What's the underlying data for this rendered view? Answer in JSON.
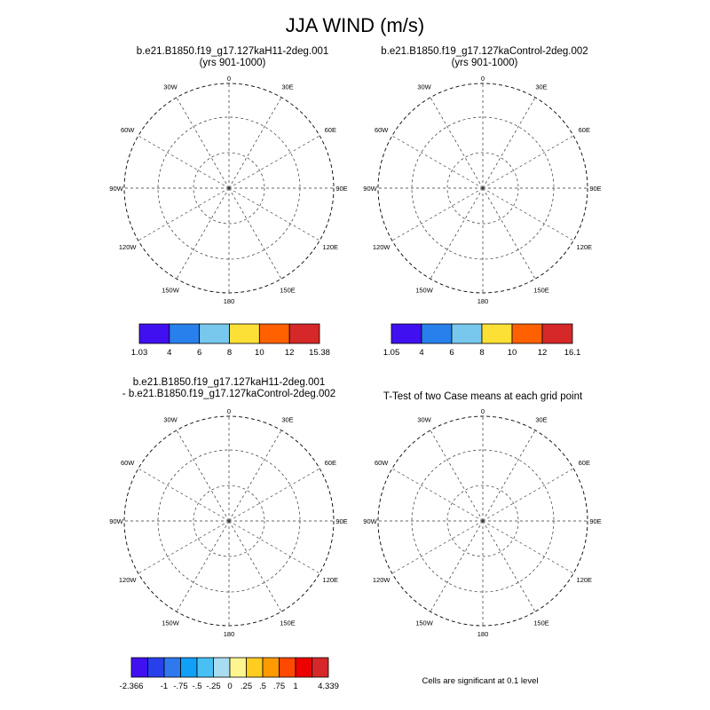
{
  "title": "JJA WIND (m/s)",
  "panels": [
    {
      "title": "b.e21.B1850.f19_g17.127kaH11-2deg.001",
      "subtitle": "(yrs 901-1000)"
    },
    {
      "title": "b.e21.B1850.f19_g17.127kaControl-2deg.002",
      "subtitle": "(yrs 901-1000)"
    },
    {
      "title": "b.e21.B1850.f19_g17.127kaH11-2deg.001",
      "subtitle": "- b.e21.B1850.f19_g17.127kaControl-2deg.002"
    },
    {
      "title": "T-Test of two Case means at each grid point",
      "subtitle": ""
    }
  ],
  "longitude_labels": [
    "0",
    "30E",
    "60E",
    "90E",
    "120E",
    "150E",
    "180",
    "150W",
    "120W",
    "90W",
    "60W",
    "30W"
  ],
  "colorbars": [
    {
      "labels": [
        "1.03",
        "4",
        "6",
        "8",
        "10",
        "12",
        "15.38"
      ],
      "colors": [
        "#4010f0",
        "#2880ec",
        "#78c8ee",
        "#fde035",
        "#ff6000",
        "#d62828"
      ]
    },
    {
      "labels": [
        "1.05",
        "4",
        "6",
        "8",
        "10",
        "12",
        "16.1"
      ],
      "colors": [
        "#4010f0",
        "#2880ec",
        "#78c8ee",
        "#fde035",
        "#ff6000",
        "#d62828"
      ]
    },
    {
      "labels": [
        "-2.366",
        "-1",
        "-.75",
        "-.5",
        "-.25",
        "0",
        ".25",
        ".5",
        ".75",
        "1",
        "4.339"
      ],
      "colors": [
        "#4010f0",
        "#2840ec",
        "#3078ee",
        "#10a0f8",
        "#48c0f4",
        "#a8dcf0",
        "#fff590",
        "#ffcc20",
        "#ff9a00",
        "#ff4800",
        "#ee0000",
        "#d62828"
      ]
    }
  ],
  "significance_note": "Cells are significant at 0.1 level",
  "significance_color": "#ee0000"
}
